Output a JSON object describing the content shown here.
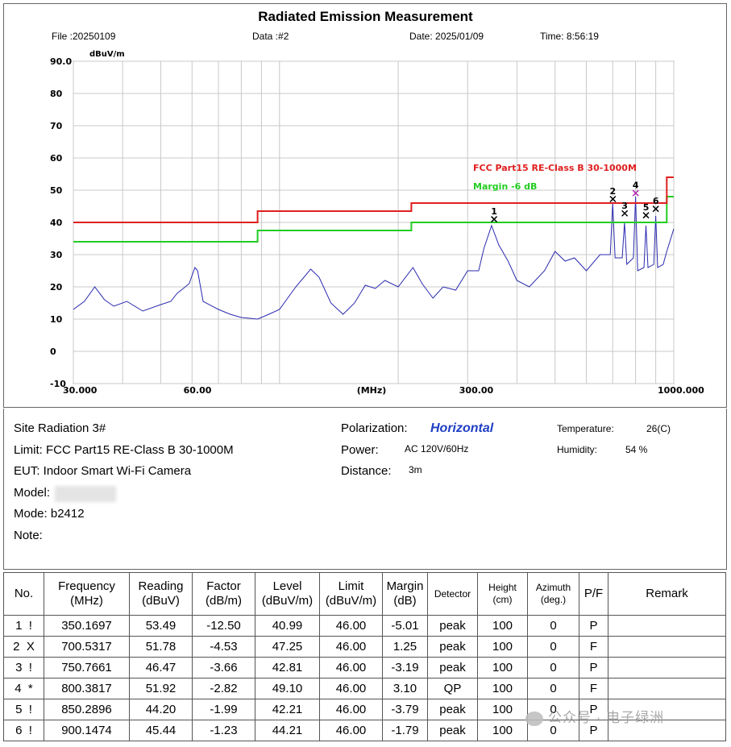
{
  "header": {
    "title": "Radiated Emission Measurement",
    "file": "File :20250109",
    "data_no": "Data :#2",
    "date": "Date: 2025/01/09",
    "time": "Time: 8:56:19"
  },
  "chart_data": {
    "type": "line",
    "unit_top": "dBuV/m",
    "xlabel": "(MHz)",
    "x_scale": "log",
    "xlim": [
      30,
      1000
    ],
    "ylim": [
      -10,
      90
    ],
    "y_ticks": [
      "90.0",
      "80",
      "70",
      "60",
      "50",
      "40",
      "30",
      "20",
      "10",
      "0",
      "-10"
    ],
    "x_ticks": [
      "30.000",
      "60.00",
      "(MHz)",
      "300.00",
      "1000.000"
    ],
    "grid": true,
    "legend": [
      {
        "label": "FCC Part15 RE-Class B 30-1000M",
        "color": "#e02020"
      },
      {
        "label": "Margin -6 dB",
        "color": "#22cc22"
      }
    ],
    "limit_line": {
      "color": "#e02020",
      "points": [
        [
          30,
          40
        ],
        [
          88,
          40
        ],
        [
          88,
          43.5
        ],
        [
          216,
          43.5
        ],
        [
          216,
          46
        ],
        [
          960,
          46
        ],
        [
          960,
          54
        ],
        [
          1000,
          54
        ]
      ]
    },
    "margin_line": {
      "color": "#22cc22",
      "points": [
        [
          30,
          34
        ],
        [
          88,
          34
        ],
        [
          88,
          37.5
        ],
        [
          216,
          37.5
        ],
        [
          216,
          40
        ],
        [
          960,
          40
        ],
        [
          960,
          48
        ],
        [
          1000,
          48
        ]
      ]
    },
    "trace": {
      "color": "#2a2ab0",
      "points": [
        [
          30,
          13
        ],
        [
          32,
          15.5
        ],
        [
          34,
          20
        ],
        [
          36,
          16
        ],
        [
          38,
          14
        ],
        [
          41,
          15.5
        ],
        [
          45,
          12.5
        ],
        [
          50,
          14.5
        ],
        [
          53,
          15.5
        ],
        [
          55,
          18
        ],
        [
          57,
          19.5
        ],
        [
          59,
          21
        ],
        [
          61,
          26
        ],
        [
          62,
          25
        ],
        [
          64,
          15.5
        ],
        [
          70,
          13
        ],
        [
          75,
          11.5
        ],
        [
          80,
          10.5
        ],
        [
          88,
          10
        ],
        [
          94,
          11.5
        ],
        [
          100,
          13
        ],
        [
          110,
          20
        ],
        [
          120,
          25.5
        ],
        [
          126,
          23
        ],
        [
          135,
          15
        ],
        [
          145,
          11.5
        ],
        [
          155,
          15
        ],
        [
          165,
          20.5
        ],
        [
          175,
          19.5
        ],
        [
          185,
          22
        ],
        [
          200,
          20
        ],
        [
          218,
          26
        ],
        [
          230,
          21
        ],
        [
          245,
          16.5
        ],
        [
          260,
          20
        ],
        [
          280,
          19
        ],
        [
          300,
          25
        ],
        [
          320,
          25
        ],
        [
          330,
          32
        ],
        [
          345,
          39
        ],
        [
          360,
          33
        ],
        [
          380,
          28
        ],
        [
          400,
          22
        ],
        [
          430,
          20
        ],
        [
          470,
          25
        ],
        [
          500,
          31
        ],
        [
          530,
          28
        ],
        [
          560,
          29
        ],
        [
          600,
          25
        ],
        [
          650,
          30
        ],
        [
          690,
          30
        ],
        [
          700,
          46
        ],
        [
          710,
          29
        ],
        [
          740,
          29
        ],
        [
          750,
          40
        ],
        [
          760,
          27
        ],
        [
          790,
          29
        ],
        [
          800,
          48
        ],
        [
          810,
          25
        ],
        [
          840,
          26
        ],
        [
          850,
          39
        ],
        [
          860,
          26
        ],
        [
          890,
          27
        ],
        [
          900,
          42
        ],
        [
          910,
          26
        ],
        [
          940,
          27
        ],
        [
          960,
          31
        ],
        [
          1000,
          38
        ]
      ]
    },
    "markers": [
      {
        "label": "1",
        "x": 350.1697,
        "y": 40.99,
        "color": "#000000"
      },
      {
        "label": "2",
        "x": 700.5317,
        "y": 47.25,
        "color": "#000000"
      },
      {
        "label": "3",
        "x": 750.7661,
        "y": 42.81,
        "color": "#000000"
      },
      {
        "label": "4",
        "x": 800.3817,
        "y": 49.1,
        "color": "#b020b0"
      },
      {
        "label": "5",
        "x": 850.2896,
        "y": 42.21,
        "color": "#000000"
      },
      {
        "label": "6",
        "x": 900.1474,
        "y": 44.21,
        "color": "#000000"
      }
    ]
  },
  "info": {
    "site": "Site  Radiation 3#",
    "limit": "Limit: FCC Part15 RE-Class B 30-1000M",
    "eut": "EUT:  Indoor Smart Wi-Fi Camera",
    "model_label": "Model:",
    "mode": "Mode:  b2412",
    "note": "Note:",
    "pol_label": "Polarization:",
    "pol_value": "Horizontal",
    "power_label": "Power:",
    "power_value": "AC 120V/60Hz",
    "distance_label": "Distance:",
    "distance_value": "3m",
    "temp_label": "Temperature:",
    "temp_value": "26(C)",
    "humid_label": "Humidity:",
    "humid_value": "54 %"
  },
  "table": {
    "headers": {
      "no": "No.",
      "freq1": "Frequency",
      "freq2": "(MHz)",
      "read1": "Reading",
      "read2": "(dBuV)",
      "fact1": "Factor",
      "fact2": "(dB/m)",
      "lev1": "Level",
      "lev2": "(dBuV/m)",
      "lim1": "Limit",
      "lim2": "(dBuV/m)",
      "mar1": "Margin",
      "mar2": "(dB)",
      "det": "Detector",
      "hgt1": "Height",
      "hgt2": "(cm)",
      "azi1": "Azimuth",
      "azi2": "(deg.)",
      "pf": "P/F",
      "remark": "Remark"
    },
    "rows": [
      {
        "no": "1  !",
        "freq": "350.1697",
        "reading": "53.49",
        "factor": "-12.50",
        "level": "40.99",
        "limit": "46.00",
        "margin": "-5.01",
        "detector": "peak",
        "height": "100",
        "azimuth": "0",
        "pf": "P",
        "remark": ""
      },
      {
        "no": "2  X",
        "freq": "700.5317",
        "reading": "51.78",
        "factor": "-4.53",
        "level": "47.25",
        "limit": "46.00",
        "margin": "1.25",
        "detector": "peak",
        "height": "100",
        "azimuth": "0",
        "pf": "F",
        "remark": ""
      },
      {
        "no": "3  !",
        "freq": "750.7661",
        "reading": "46.47",
        "factor": "-3.66",
        "level": "42.81",
        "limit": "46.00",
        "margin": "-3.19",
        "detector": "peak",
        "height": "100",
        "azimuth": "0",
        "pf": "P",
        "remark": ""
      },
      {
        "no": "4  *",
        "freq": "800.3817",
        "reading": "51.92",
        "factor": "-2.82",
        "level": "49.10",
        "limit": "46.00",
        "margin": "3.10",
        "detector": "QP",
        "height": "100",
        "azimuth": "0",
        "pf": "F",
        "remark": ""
      },
      {
        "no": "5  !",
        "freq": "850.2896",
        "reading": "44.20",
        "factor": "-1.99",
        "level": "42.21",
        "limit": "46.00",
        "margin": "-3.79",
        "detector": "peak",
        "height": "100",
        "azimuth": "0",
        "pf": "P",
        "remark": ""
      },
      {
        "no": "6  !",
        "freq": "900.1474",
        "reading": "45.44",
        "factor": "-1.23",
        "level": "44.21",
        "limit": "46.00",
        "margin": "-1.79",
        "detector": "peak",
        "height": "100",
        "azimuth": "0",
        "pf": "P",
        "remark": ""
      }
    ]
  },
  "watermark": "公众号 · 电子绿洲"
}
